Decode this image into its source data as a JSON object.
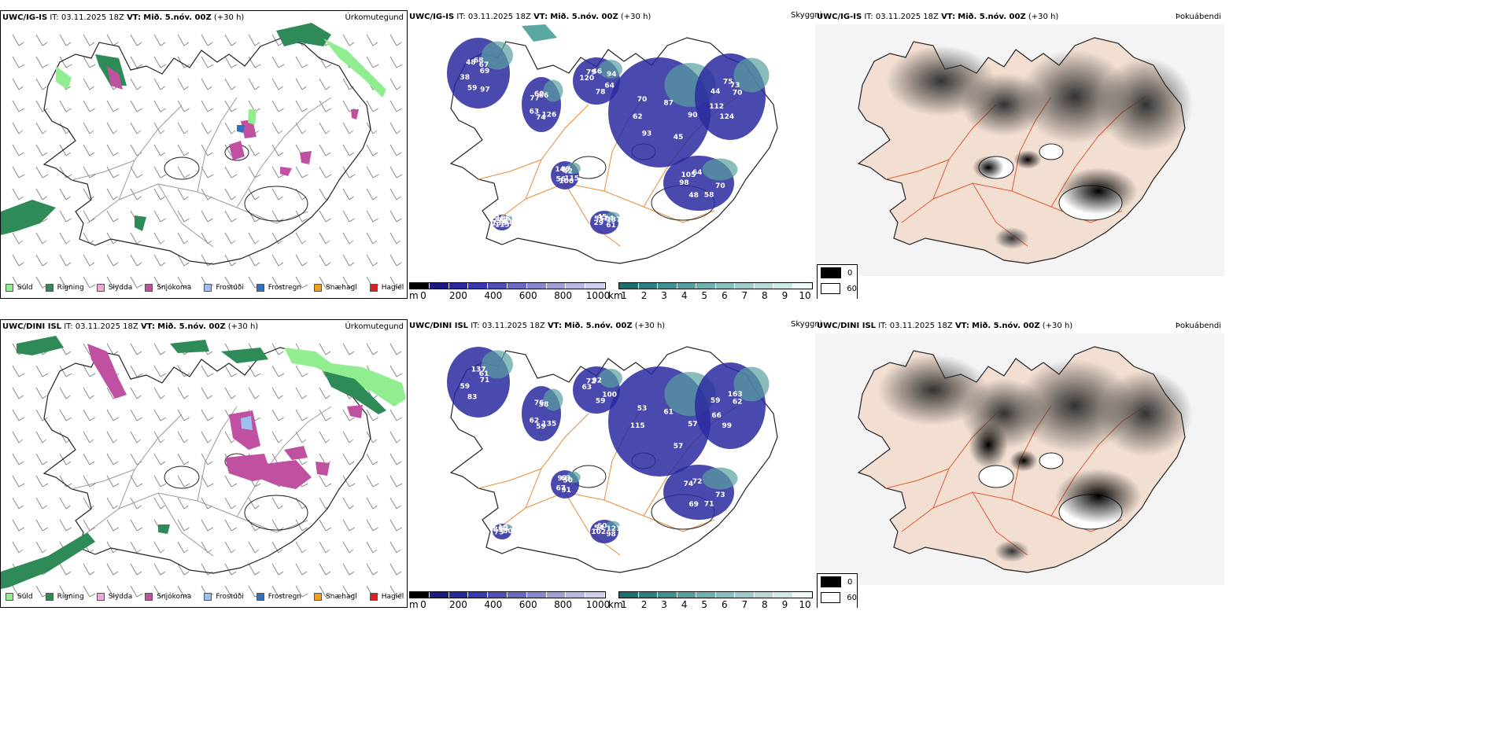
{
  "rows": [
    {
      "model": "UWC/IG-IS",
      "it": "IT: 03.11.2025 18Z",
      "vt_label": "VT:",
      "vt": "Mið. 5.nóv. 00Z",
      "lead": "(+30 h)"
    },
    {
      "model": "UWC/DINI ISL",
      "it": "IT: 03.11.2025 18Z",
      "vt_label": "VT:",
      "vt": "Mið. 5.nóv. 00Z",
      "lead": "(+30 h)"
    }
  ],
  "panels": {
    "precip_type_title": "Úrkomutegund",
    "cloud_title": "Skyggni",
    "fog_title": "Þokuábendi"
  },
  "precip_legend": [
    {
      "label": "Súld",
      "color": "#90ee90"
    },
    {
      "label": "Rigning",
      "color": "#2e8b57"
    },
    {
      "label": "Slydda",
      "color": "#f0a8d8"
    },
    {
      "label": "Snjókoma",
      "color": "#c050a0"
    },
    {
      "label": "Frostúði",
      "color": "#9ac0f0"
    },
    {
      "label": "Frostregn",
      "color": "#3070c0"
    },
    {
      "label": "Snæhagl",
      "color": "#f0a020"
    },
    {
      "label": "Haglél",
      "color": "#e02020"
    }
  ],
  "cloudbase_scale": {
    "unit": "m",
    "ticks": [
      "0",
      "200",
      "400",
      "600",
      "800",
      "1000"
    ],
    "colors": [
      "#000000",
      "#1a1a80",
      "#2a2aa0",
      "#3838b0",
      "#5050b8",
      "#6a6ac0",
      "#8888cc",
      "#a0a0d4",
      "#b8b8e0",
      "#d0d0ec"
    ]
  },
  "visibility_scale": {
    "unit": "km",
    "ticks": [
      "1",
      "2",
      "3",
      "4",
      "5",
      "6",
      "7",
      "8",
      "9",
      "10"
    ],
    "colors": [
      "#1e6e6e",
      "#2f8080",
      "#409090",
      "#58a0a0",
      "#70b0b0",
      "#88c0c0",
      "#a0cccc",
      "#b8d8d8",
      "#d0e8e8",
      "#eef8f8"
    ]
  },
  "fog_legend": [
    {
      "label": "0",
      "color": "#000000"
    },
    {
      "label": "60",
      "color": "#ffffff"
    }
  ],
  "cloud_labels_top": [
    "69",
    "63",
    "46",
    "45",
    "44",
    "42",
    "48",
    "45",
    "41",
    "38",
    "66",
    "78",
    "70",
    "70",
    "56",
    "64",
    "61",
    "77",
    "67",
    "74",
    "79",
    "90",
    "112",
    "87",
    "58",
    "55",
    "42",
    "59",
    "60",
    "64",
    "62",
    "73",
    "106",
    "105",
    "137",
    "136",
    "68",
    "126",
    "120",
    "87",
    "124",
    "146",
    "70",
    "29",
    "186",
    "97",
    "77",
    "94",
    "93",
    "75",
    "115",
    "98",
    "124",
    "113",
    "48"
  ],
  "cloud_labels_bottom": [
    "71",
    "62",
    "92",
    "57",
    "59",
    "50",
    "69",
    "60",
    "80",
    "59",
    "58",
    "59",
    "53",
    "62",
    "67",
    "72",
    "98",
    "85",
    "61",
    "59",
    "72",
    "57",
    "66",
    "63",
    "71",
    "54",
    "63",
    "83",
    "76",
    "100",
    "115",
    "163",
    "91",
    "74",
    "121",
    "73",
    "137",
    "135",
    "63",
    "61",
    "99",
    "93",
    "73",
    "102",
    "10"
  ]
}
